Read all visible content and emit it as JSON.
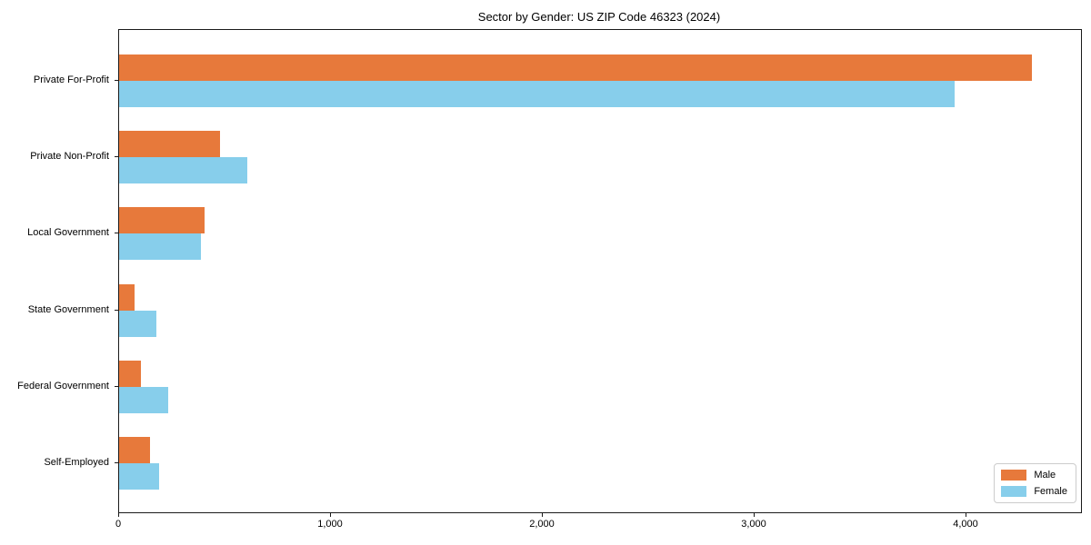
{
  "chart_data": {
    "type": "bar",
    "orientation": "horizontal",
    "title": "Sector by Gender: US ZIP Code 46323 (2024)",
    "categories": [
      "Private For-Profit",
      "Private Non-Profit",
      "Local Government",
      "State Government",
      "Federal Government",
      "Self-Employed"
    ],
    "series": [
      {
        "name": "Male",
        "color": "#E7793B",
        "values": [
          4310,
          475,
          405,
          75,
          105,
          145
        ]
      },
      {
        "name": "Female",
        "color": "#87CEEB",
        "values": [
          3945,
          605,
          385,
          175,
          230,
          190
        ]
      }
    ],
    "xlabel": "",
    "ylabel": "",
    "xlim": [
      0,
      4540
    ],
    "x_ticks": [
      {
        "value": 0,
        "label": "0"
      },
      {
        "value": 1000,
        "label": "1,000"
      },
      {
        "value": 2000,
        "label": "2,000"
      },
      {
        "value": 3000,
        "label": "3,000"
      },
      {
        "value": 4000,
        "label": "4,000"
      }
    ],
    "grid": false,
    "legend_position": "lower right",
    "colors": {
      "male": "#E7793B",
      "female": "#87CEEB",
      "frame": "#1a1a1a",
      "background": "#ffffff"
    }
  }
}
